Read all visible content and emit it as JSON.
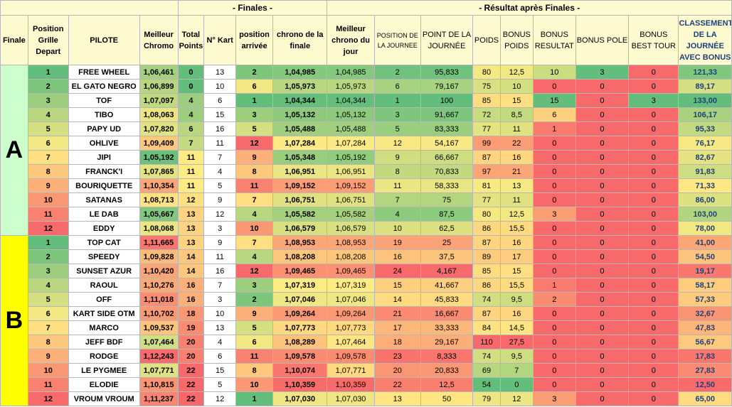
{
  "section_titles": {
    "finales": "- Finales -",
    "resultat": "- Résultat après Finales -"
  },
  "headers": [
    "Finale",
    "Position Grille Depart",
    "PILOTE",
    "Meilleur Chromo",
    "Total Points",
    "N° Kart",
    "position arrivée",
    "chrono de la finale",
    "Meilleur chrono du jour",
    "POSITION DE LA JOURNEE",
    "POINT DE LA JOURNÉE",
    "POIDS",
    "BONUS POIDS",
    "BONUS RESULTAT",
    "BONUS POLE",
    "BONUS BEST TOUR",
    "CLASSEMENT DE LA JOURNÉE AVEC BONUS"
  ],
  "colors": {
    "group_a": "#ccffcc",
    "group_b": "#ffff00",
    "header_bg": "#fffbd0",
    "score_text": "#1f3f7a"
  },
  "groups": [
    {
      "label": "A",
      "rows": [
        {
          "grid": "1",
          "pilot": "FREE WHEEL",
          "best": "1,06,461",
          "total": "0",
          "kart": "13",
          "arrival": "2",
          "final_time": "1,04,985",
          "best_day": "1,04,985",
          "day_pos": "2",
          "day_points": "95,833",
          "weight": "80",
          "bonus_weight": "12,5",
          "bonus_result": "10",
          "bonus_pole": "3",
          "bonus_best": "0",
          "ranking": "121,33"
        },
        {
          "grid": "2",
          "pilot": "EL GATO NEGRO",
          "best": "1,06,899",
          "total": "0",
          "kart": "10",
          "arrival": "6",
          "final_time": "1,05,973",
          "best_day": "1,05,973",
          "day_pos": "6",
          "day_points": "79,167",
          "weight": "75",
          "bonus_weight": "10",
          "bonus_result": "0",
          "bonus_pole": "0",
          "bonus_best": "0",
          "ranking": "89,17"
        },
        {
          "grid": "3",
          "pilot": "TOF",
          "best": "1,07,097",
          "total": "4",
          "kart": "6",
          "arrival": "1",
          "final_time": "1,04,344",
          "best_day": "1,04,344",
          "day_pos": "1",
          "day_points": "100",
          "weight": "85",
          "bonus_weight": "15",
          "bonus_result": "15",
          "bonus_pole": "0",
          "bonus_best": "3",
          "ranking": "133,00"
        },
        {
          "grid": "4",
          "pilot": "TIBO",
          "best": "1,08,063",
          "total": "4",
          "kart": "15",
          "arrival": "3",
          "final_time": "1,05,132",
          "best_day": "1,05,132",
          "day_pos": "3",
          "day_points": "91,667",
          "weight": "72",
          "bonus_weight": "8,5",
          "bonus_result": "6",
          "bonus_pole": "0",
          "bonus_best": "0",
          "ranking": "106,17"
        },
        {
          "grid": "5",
          "pilot": "PAPY UD",
          "best": "1,07,820",
          "total": "6",
          "kart": "16",
          "arrival": "5",
          "final_time": "1,05,488",
          "best_day": "1,05,488",
          "day_pos": "5",
          "day_points": "83,333",
          "weight": "77",
          "bonus_weight": "11",
          "bonus_result": "1",
          "bonus_pole": "0",
          "bonus_best": "0",
          "ranking": "95,33"
        },
        {
          "grid": "6",
          "pilot": "OHLIVE",
          "best": "1,09,409",
          "total": "7",
          "kart": "11",
          "arrival": "12",
          "final_time": "1,07,284",
          "best_day": "1,07,284",
          "day_pos": "12",
          "day_points": "54,167",
          "weight": "99",
          "bonus_weight": "22",
          "bonus_result": "0",
          "bonus_pole": "0",
          "bonus_best": "0",
          "ranking": "76,17"
        },
        {
          "grid": "7",
          "pilot": "JIPI",
          "best": "1,05,192",
          "total": "11",
          "kart": "7",
          "arrival": "9",
          "final_time": "1,05,348",
          "best_day": "1,05,192",
          "day_pos": "9",
          "day_points": "66,667",
          "weight": "87",
          "bonus_weight": "16",
          "bonus_result": "0",
          "bonus_pole": "0",
          "bonus_best": "0",
          "ranking": "82,67"
        },
        {
          "grid": "8",
          "pilot": "FRANCK'I",
          "best": "1,07,865",
          "total": "11",
          "kart": "4",
          "arrival": "8",
          "final_time": "1,06,951",
          "best_day": "1,06,951",
          "day_pos": "8",
          "day_points": "70,833",
          "weight": "97",
          "bonus_weight": "21",
          "bonus_result": "0",
          "bonus_pole": "0",
          "bonus_best": "0",
          "ranking": "91,83"
        },
        {
          "grid": "9",
          "pilot": "BOURIQUETTE",
          "best": "1,10,354",
          "total": "11",
          "kart": "5",
          "arrival": "11",
          "final_time": "1,09,152",
          "best_day": "1,09,152",
          "day_pos": "11",
          "day_points": "58,333",
          "weight": "81",
          "bonus_weight": "13",
          "bonus_result": "0",
          "bonus_pole": "0",
          "bonus_best": "0",
          "ranking": "71,33"
        },
        {
          "grid": "10",
          "pilot": "SATANAS",
          "best": "1,08,713",
          "total": "12",
          "kart": "9",
          "arrival": "7",
          "final_time": "1,06,751",
          "best_day": "1,06,751",
          "day_pos": "7",
          "day_points": "75",
          "weight": "77",
          "bonus_weight": "11",
          "bonus_result": "0",
          "bonus_pole": "0",
          "bonus_best": "0",
          "ranking": "86,00"
        },
        {
          "grid": "11",
          "pilot": "LE DAB",
          "best": "1,05,667",
          "total": "13",
          "kart": "12",
          "arrival": "4",
          "final_time": "1,05,582",
          "best_day": "1,05,582",
          "day_pos": "4",
          "day_points": "87,5",
          "weight": "80",
          "bonus_weight": "12,5",
          "bonus_result": "3",
          "bonus_pole": "0",
          "bonus_best": "0",
          "ranking": "103,00"
        },
        {
          "grid": "12",
          "pilot": "EDDY",
          "best": "1,08,068",
          "total": "13",
          "kart": "3",
          "arrival": "10",
          "final_time": "1,06,579",
          "best_day": "1,06,579",
          "day_pos": "10",
          "day_points": "62,5",
          "weight": "86",
          "bonus_weight": "15,5",
          "bonus_result": "0",
          "bonus_pole": "0",
          "bonus_best": "0",
          "ranking": "78,00"
        }
      ]
    },
    {
      "label": "B",
      "rows": [
        {
          "grid": "1",
          "pilot": "TOP CAT",
          "best": "1,11,665",
          "total": "13",
          "kart": "9",
          "arrival": "7",
          "final_time": "1,08,953",
          "best_day": "1,08,953",
          "day_pos": "19",
          "day_points": "25",
          "weight": "87",
          "bonus_weight": "16",
          "bonus_result": "0",
          "bonus_pole": "0",
          "bonus_best": "0",
          "ranking": "41,00"
        },
        {
          "grid": "2",
          "pilot": "SPEEDY",
          "best": "1,09,828",
          "total": "14",
          "kart": "11",
          "arrival": "4",
          "final_time": "1,08,208",
          "best_day": "1,08,208",
          "day_pos": "16",
          "day_points": "37,5",
          "weight": "89",
          "bonus_weight": "17",
          "bonus_result": "0",
          "bonus_pole": "0",
          "bonus_best": "0",
          "ranking": "54,50"
        },
        {
          "grid": "3",
          "pilot": "SUNSET AZUR",
          "best": "1,10,420",
          "total": "14",
          "kart": "16",
          "arrival": "12",
          "final_time": "1,09,465",
          "best_day": "1,09,465",
          "day_pos": "24",
          "day_points": "4,167",
          "weight": "85",
          "bonus_weight": "15",
          "bonus_result": "0",
          "bonus_pole": "0",
          "bonus_best": "0",
          "ranking": "19,17"
        },
        {
          "grid": "4",
          "pilot": "RAOUL",
          "best": "1,10,276",
          "total": "16",
          "kart": "7",
          "arrival": "3",
          "final_time": "1,07,319",
          "best_day": "1,07,319",
          "day_pos": "15",
          "day_points": "41,667",
          "weight": "86",
          "bonus_weight": "15,5",
          "bonus_result": "1",
          "bonus_pole": "0",
          "bonus_best": "0",
          "ranking": "58,17"
        },
        {
          "grid": "5",
          "pilot": "OFF",
          "best": "1,11,018",
          "total": "16",
          "kart": "3",
          "arrival": "2",
          "final_time": "1,07,046",
          "best_day": "1,07,046",
          "day_pos": "14",
          "day_points": "45,833",
          "weight": "74",
          "bonus_weight": "9,5",
          "bonus_result": "2",
          "bonus_pole": "0",
          "bonus_best": "0",
          "ranking": "57,33"
        },
        {
          "grid": "6",
          "pilot": "KART SIDE OTM",
          "best": "1,10,702",
          "total": "18",
          "kart": "10",
          "arrival": "9",
          "final_time": "1,09,264",
          "best_day": "1,09,264",
          "day_pos": "21",
          "day_points": "16,667",
          "weight": "87",
          "bonus_weight": "16",
          "bonus_result": "0",
          "bonus_pole": "0",
          "bonus_best": "0",
          "ranking": "32,67"
        },
        {
          "grid": "7",
          "pilot": "MARCO",
          "best": "1,09,537",
          "total": "19",
          "kart": "13",
          "arrival": "5",
          "final_time": "1,07,773",
          "best_day": "1,07,773",
          "day_pos": "17",
          "day_points": "33,333",
          "weight": "84",
          "bonus_weight": "14,5",
          "bonus_result": "0",
          "bonus_pole": "0",
          "bonus_best": "0",
          "ranking": "47,83"
        },
        {
          "grid": "8",
          "pilot": "JEFF BDF",
          "best": "1,07,464",
          "total": "20",
          "kart": "4",
          "arrival": "6",
          "final_time": "1,08,289",
          "best_day": "1,07,464",
          "day_pos": "18",
          "day_points": "29,167",
          "weight": "110",
          "bonus_weight": "27,5",
          "bonus_result": "0",
          "bonus_pole": "0",
          "bonus_best": "0",
          "ranking": "56,67"
        },
        {
          "grid": "9",
          "pilot": "RODGE",
          "best": "1,12,243",
          "total": "20",
          "kart": "6",
          "arrival": "11",
          "final_time": "1,09,578",
          "best_day": "1,09,578",
          "day_pos": "23",
          "day_points": "8,333",
          "weight": "74",
          "bonus_weight": "9,5",
          "bonus_result": "0",
          "bonus_pole": "0",
          "bonus_best": "0",
          "ranking": "17,83"
        },
        {
          "grid": "10",
          "pilot": "LE PYGMEE",
          "best": "1,07,771",
          "total": "22",
          "kart": "15",
          "arrival": "8",
          "final_time": "1,10,074",
          "best_day": "1,07,771",
          "day_pos": "20",
          "day_points": "20,833",
          "weight": "69",
          "bonus_weight": "7",
          "bonus_result": "0",
          "bonus_pole": "0",
          "bonus_best": "0",
          "ranking": "27,83"
        },
        {
          "grid": "11",
          "pilot": "ELODIE",
          "best": "1,10,815",
          "total": "22",
          "kart": "5",
          "arrival": "10",
          "final_time": "1,10,359",
          "best_day": "1,10,359",
          "day_pos": "22",
          "day_points": "12,5",
          "weight": "54",
          "bonus_weight": "0",
          "bonus_result": "0",
          "bonus_pole": "0",
          "bonus_best": "0",
          "ranking": "12,50"
        },
        {
          "grid": "12",
          "pilot": "VROUM VROUM",
          "best": "1,11,237",
          "total": "22",
          "kart": "12",
          "arrival": "1",
          "final_time": "1,07,030",
          "best_day": "1,07,030",
          "day_pos": "13",
          "day_points": "50",
          "weight": "79",
          "bonus_weight": "12",
          "bonus_result": "3",
          "bonus_pole": "0",
          "bonus_best": "0",
          "ranking": "65,00"
        }
      ]
    }
  ]
}
